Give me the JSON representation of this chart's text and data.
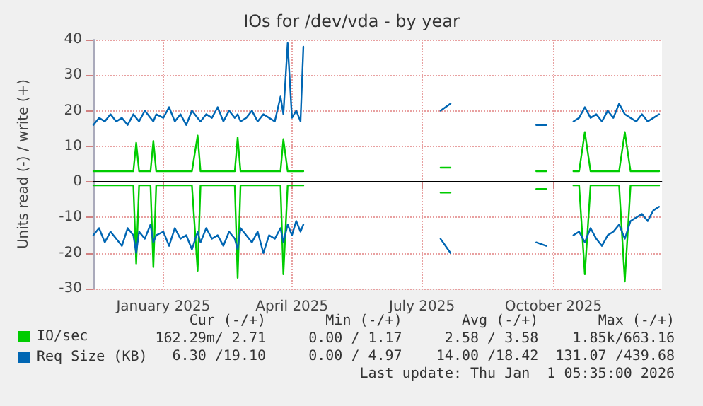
{
  "chart_data": {
    "type": "line",
    "title": "IOs for /dev/vda - by year",
    "ylabel": "Units read (-) / write (+)",
    "x": [
      "2024-11-13",
      "2024-11-17",
      "2024-11-21",
      "2024-11-25",
      "2024-11-29",
      "2024-12-03",
      "2024-12-07",
      "2024-12-11",
      "2024-12-13",
      "2024-12-15",
      "2024-12-19",
      "2024-12-23",
      "2024-12-25",
      "2024-12-27",
      "2025-01-01",
      "2025-01-05",
      "2025-01-09",
      "2025-01-13",
      "2025-01-17",
      "2025-01-21",
      "2025-01-25",
      "2025-01-27",
      "2025-01-31",
      "2025-02-04",
      "2025-02-08",
      "2025-02-12",
      "2025-02-16",
      "2025-02-20",
      "2025-02-22",
      "2025-02-24",
      "2025-02-28",
      "2025-03-04",
      "2025-03-08",
      "2025-03-12",
      "2025-03-16",
      "2025-03-20",
      "2025-03-24",
      "2025-03-26",
      "2025-03-29",
      "2025-04-01",
      "2025-04-04",
      "2025-04-07",
      "2025-04-09",
      "2025-05-01",
      "2025-07-14",
      "2025-07-21",
      "2025-08-15",
      "2025-09-19",
      "2025-09-26",
      "2025-10-05",
      "2025-10-15",
      "2025-10-19",
      "2025-10-23",
      "2025-10-27",
      "2025-10-31",
      "2025-11-04",
      "2025-11-08",
      "2025-11-12",
      "2025-11-16",
      "2025-11-20",
      "2025-11-24",
      "2025-11-28",
      "2025-12-02",
      "2025-12-06",
      "2025-12-10",
      "2025-12-14"
    ],
    "series": [
      {
        "name": "IO/sec",
        "color": "#00cc00",
        "values": [
          3,
          3,
          3,
          3,
          3,
          3,
          3,
          3,
          11,
          3,
          3,
          3,
          11.5,
          3,
          3,
          3,
          3,
          3,
          3,
          3,
          13,
          3,
          3,
          3,
          3,
          3,
          3,
          3,
          12.5,
          3,
          3,
          3,
          3,
          3,
          3,
          3,
          3,
          12,
          3,
          3,
          3,
          3,
          3,
          null,
          4,
          4,
          null,
          3,
          3,
          null,
          3,
          3,
          14,
          3,
          3,
          3,
          3,
          3,
          3,
          14,
          3,
          3,
          3,
          3,
          3,
          3
        ]
      },
      {
        "color": "#00cc00",
        "values": [
          -1,
          -1,
          -1,
          -1,
          -1,
          -1,
          -1,
          -1,
          -23,
          -1,
          -1,
          -1,
          -24,
          -1,
          -1,
          -1,
          -1,
          -1,
          -1,
          -1,
          -25,
          -1,
          -1,
          -1,
          -1,
          -1,
          -1,
          -1,
          -27,
          -1,
          -1,
          -1,
          -1,
          -1,
          -1,
          -1,
          -1,
          -26,
          -1,
          -1,
          -1,
          -1,
          -1,
          null,
          -3,
          -3,
          null,
          -2,
          -2,
          null,
          -1,
          -1,
          -26,
          -1,
          -1,
          -1,
          -1,
          -1,
          -1,
          -28,
          -1,
          -1,
          -1,
          -1,
          -1,
          -1
        ]
      },
      {
        "name": "Req Size (KB)",
        "color": "#0066b3",
        "values": [
          16,
          18,
          17,
          19,
          17,
          18,
          16,
          19,
          18,
          17,
          20,
          18,
          17,
          19,
          18,
          21,
          17,
          19,
          16,
          20,
          18,
          17,
          19,
          18,
          21,
          17,
          20,
          18,
          19,
          17,
          18,
          20,
          17,
          19,
          18,
          17,
          24,
          19,
          39,
          18,
          20,
          17,
          38,
          null,
          20,
          22,
          null,
          16,
          16,
          null,
          17,
          18,
          21,
          18,
          19,
          17,
          20,
          18,
          22,
          19,
          18,
          17,
          19,
          17,
          18,
          19
        ]
      },
      {
        "color": "#0066b3",
        "values": [
          -15,
          -13,
          -17,
          -14,
          -16,
          -18,
          -13,
          -15,
          -20,
          -14,
          -16,
          -12,
          -17,
          -15,
          -14,
          -18,
          -13,
          -16,
          -15,
          -19,
          -14,
          -17,
          -13,
          -16,
          -15,
          -18,
          -14,
          -16,
          -19,
          -13,
          -15,
          -17,
          -14,
          -20,
          -15,
          -16,
          -13,
          -17,
          -12,
          -15,
          -11,
          -14,
          -12,
          null,
          -16,
          -20,
          null,
          -17,
          -18,
          null,
          -15,
          -14,
          -17,
          -13,
          -16,
          -18,
          -15,
          -14,
          -12,
          -16,
          -11,
          -10,
          -9,
          -11,
          -8,
          -7
        ]
      }
    ],
    "xlim": [
      "2024-11-13",
      "2025-12-16"
    ],
    "xticks": [
      {
        "value": "2025-01-01",
        "label": "January 2025"
      },
      {
        "value": "2025-04-01",
        "label": "April 2025"
      },
      {
        "value": "2025-07-01",
        "label": "July 2025"
      },
      {
        "value": "2025-10-01",
        "label": "October 2025"
      }
    ],
    "ylim": [
      -30,
      40
    ],
    "yticks": [
      -30,
      -20,
      -10,
      0,
      10,
      20,
      30,
      40
    ],
    "ref_lines": [
      {
        "axis": "y",
        "value": 0,
        "color": "#000000"
      }
    ],
    "grid": true,
    "legend": "bottom left",
    "line_style": "solid",
    "marker": "none",
    "annotations": [
      "Cur (-/+)       Min (-/+)       Avg (-/+)       Max (-/+)",
      "162.29m/ 2.71     0.00 / 1.17     2.58 / 3.58    1.85k/663.16",
      "  6.30 /19.10     0.00 / 4.97    14.00 /18.42  131.07 /439.68",
      "Last update: Thu Jan  1 05:35:00 2026"
    ]
  }
}
